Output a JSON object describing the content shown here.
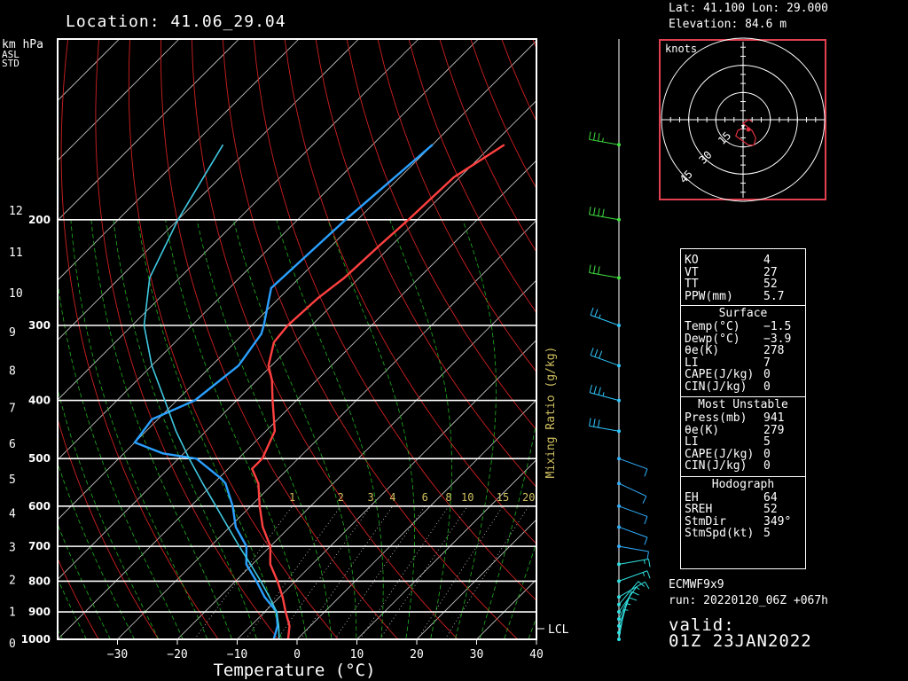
{
  "header": {
    "location": "Location: 41.06_29.04",
    "lat_lon": "Lat: 41.100   Lon: 29.000",
    "elevation": "Elevation: 84.6    m"
  },
  "colors": {
    "temperature": "#ff4040",
    "dewpoint": "#2aa0ff",
    "parcel": "#3fc8e0",
    "dry_adiabat": "#d02020",
    "moist_adiabat": "#20b020",
    "isotherm": "#c8c8c8",
    "mixing_ratio": "#d0c060",
    "grid": "#ffffff"
  },
  "axes": {
    "left_units": "km  hPa",
    "asl": "ASL",
    "std": "STD",
    "xlabel": "Temperature (°C)",
    "mixing_label": "Mixing Ratio (g/kg)",
    "lcl": "LCL"
  },
  "hodograph": {
    "units": "knots",
    "rings": [
      "15",
      "30",
      "45"
    ]
  },
  "indices": {
    "general": [
      {
        "k": "KO",
        "v": "4"
      },
      {
        "k": "VT",
        "v": "27"
      },
      {
        "k": "TT",
        "v": "52"
      },
      {
        "k": "PPW(mm)",
        "v": "5.7"
      }
    ],
    "surface_title": "Surface",
    "surface": [
      {
        "k": "Temp(°C)",
        "v": "−1.5"
      },
      {
        "k": "Dewp(°C)",
        "v": "−3.9"
      },
      {
        "k": "θe(K)",
        "v": "278"
      },
      {
        "k": "LI",
        "v": "7"
      },
      {
        "k": "CAPE(J/kg)",
        "v": "0"
      },
      {
        "k": "CIN(J/kg)",
        "v": "0"
      }
    ],
    "mu_title": "Most Unstable",
    "most_unstable": [
      {
        "k": "Press(mb)",
        "v": "941"
      },
      {
        "k": "θe(K)",
        "v": "279"
      },
      {
        "k": "LI",
        "v": "5"
      },
      {
        "k": "CAPE(J/kg)",
        "v": "0"
      },
      {
        "k": "CIN(J/kg)",
        "v": "0"
      }
    ],
    "hodo_title": "Hodograph",
    "hodo": [
      {
        "k": "EH",
        "v": "64"
      },
      {
        "k": "SREH",
        "v": "52"
      },
      {
        "k": "StmDir",
        "v": "349°"
      },
      {
        "k": "StmSpd(kt)",
        "v": "5"
      }
    ]
  },
  "model": {
    "name": "ECMWF9x9",
    "run": "run:  20220120_06Z +067h",
    "valid_label": "valid:",
    "valid_time": "01Z 23JAN2022"
  },
  "chart_data": {
    "type": "line",
    "title": "Location: 41.06_29.04",
    "xlabel": "Temperature (°C)",
    "ylabel": "hPa",
    "xlim": [
      -40,
      40
    ],
    "ylim": [
      1000,
      100
    ],
    "y_scale": "log-pressure (skew-T)",
    "pressure_ticks": [
      1000,
      900,
      800,
      700,
      600,
      500,
      400,
      300,
      200
    ],
    "pressure_tick_labels": [
      "1000",
      "900",
      "800",
      "700",
      "600",
      "500",
      "400",
      "300",
      "200"
    ],
    "temp_ticks": [
      -30,
      -20,
      -10,
      0,
      10,
      20,
      30,
      40
    ],
    "temp_tick_labels": [
      "−30",
      "−20",
      "−10",
      "0",
      "10",
      "20",
      "30",
      "40"
    ],
    "km_ticks": [
      "0",
      "1",
      "2",
      "3",
      "4",
      "5",
      "6",
      "7",
      "8",
      "9",
      "10",
      "11",
      "12"
    ],
    "mixing_ratio_labels": [
      "1",
      "2",
      "3",
      "4",
      "6",
      "8",
      "10",
      "15",
      "20"
    ],
    "grid": true,
    "series": [
      {
        "key": "temperature",
        "p": [
          1000,
          950,
          900,
          850,
          800,
          750,
          700,
          650,
          600,
          550,
          520,
          500,
          450,
          400,
          370,
          350,
          320,
          300,
          270,
          250,
          220,
          200,
          170,
          150
        ],
        "t": [
          -1.5,
          -3.5,
          -6.5,
          -9.5,
          -13,
          -17,
          -20,
          -24.5,
          -28.5,
          -32.5,
          -36,
          -36,
          -38.5,
          -44,
          -47.5,
          -50.5,
          -53.5,
          -54,
          -53.5,
          -52.5,
          -52,
          -51.5,
          -51,
          -48
        ]
      },
      {
        "key": "dewpoint",
        "p": [
          1000,
          950,
          900,
          850,
          800,
          750,
          700,
          650,
          600,
          550,
          540,
          500,
          490,
          470,
          430,
          400,
          350,
          310,
          300,
          260,
          200,
          150
        ],
        "t": [
          -3.9,
          -5.5,
          -8,
          -12.5,
          -16.5,
          -21,
          -24,
          -29,
          -33,
          -38,
          -39.5,
          -47,
          -53.5,
          -60,
          -61,
          -57,
          -55.5,
          -57,
          -58,
          -63,
          -62,
          -60
        ]
      },
      {
        "key": "parcel",
        "p": [
          1000,
          950,
          900,
          850,
          800,
          750,
          700,
          650,
          600,
          550,
          500,
          450,
          400,
          350,
          300,
          250,
          200,
          150
        ],
        "t": [
          -3,
          -5.3,
          -8,
          -11.7,
          -15.8,
          -20.3,
          -25.2,
          -30.3,
          -35.8,
          -41.8,
          -48.2,
          -55,
          -62,
          -70,
          -78,
          -85,
          -90,
          -95
        ]
      }
    ],
    "wind": {
      "p": [
        1000,
        975,
        950,
        925,
        900,
        875,
        850,
        800,
        750,
        700,
        650,
        600,
        550,
        500,
        450,
        400,
        350,
        300,
        250,
        200,
        150
      ],
      "dir": [
        10,
        15,
        20,
        25,
        35,
        40,
        60,
        70,
        80,
        100,
        110,
        110,
        115,
        110,
        280,
        285,
        290,
        290,
        280,
        280,
        280
      ],
      "spd": [
        5,
        8,
        10,
        10,
        8,
        10,
        12,
        15,
        15,
        14,
        10,
        10,
        10,
        10,
        30,
        35,
        30,
        25,
        30,
        40,
        35
      ]
    },
    "hodograph_trace": {
      "u_kt": [
        -1,
        -3,
        -4,
        3,
        6,
        7,
        5,
        0,
        3,
        5
      ],
      "v_kt": [
        -5,
        -6,
        -9,
        -14,
        -14,
        -10,
        -6,
        -2,
        0,
        -1
      ]
    }
  }
}
